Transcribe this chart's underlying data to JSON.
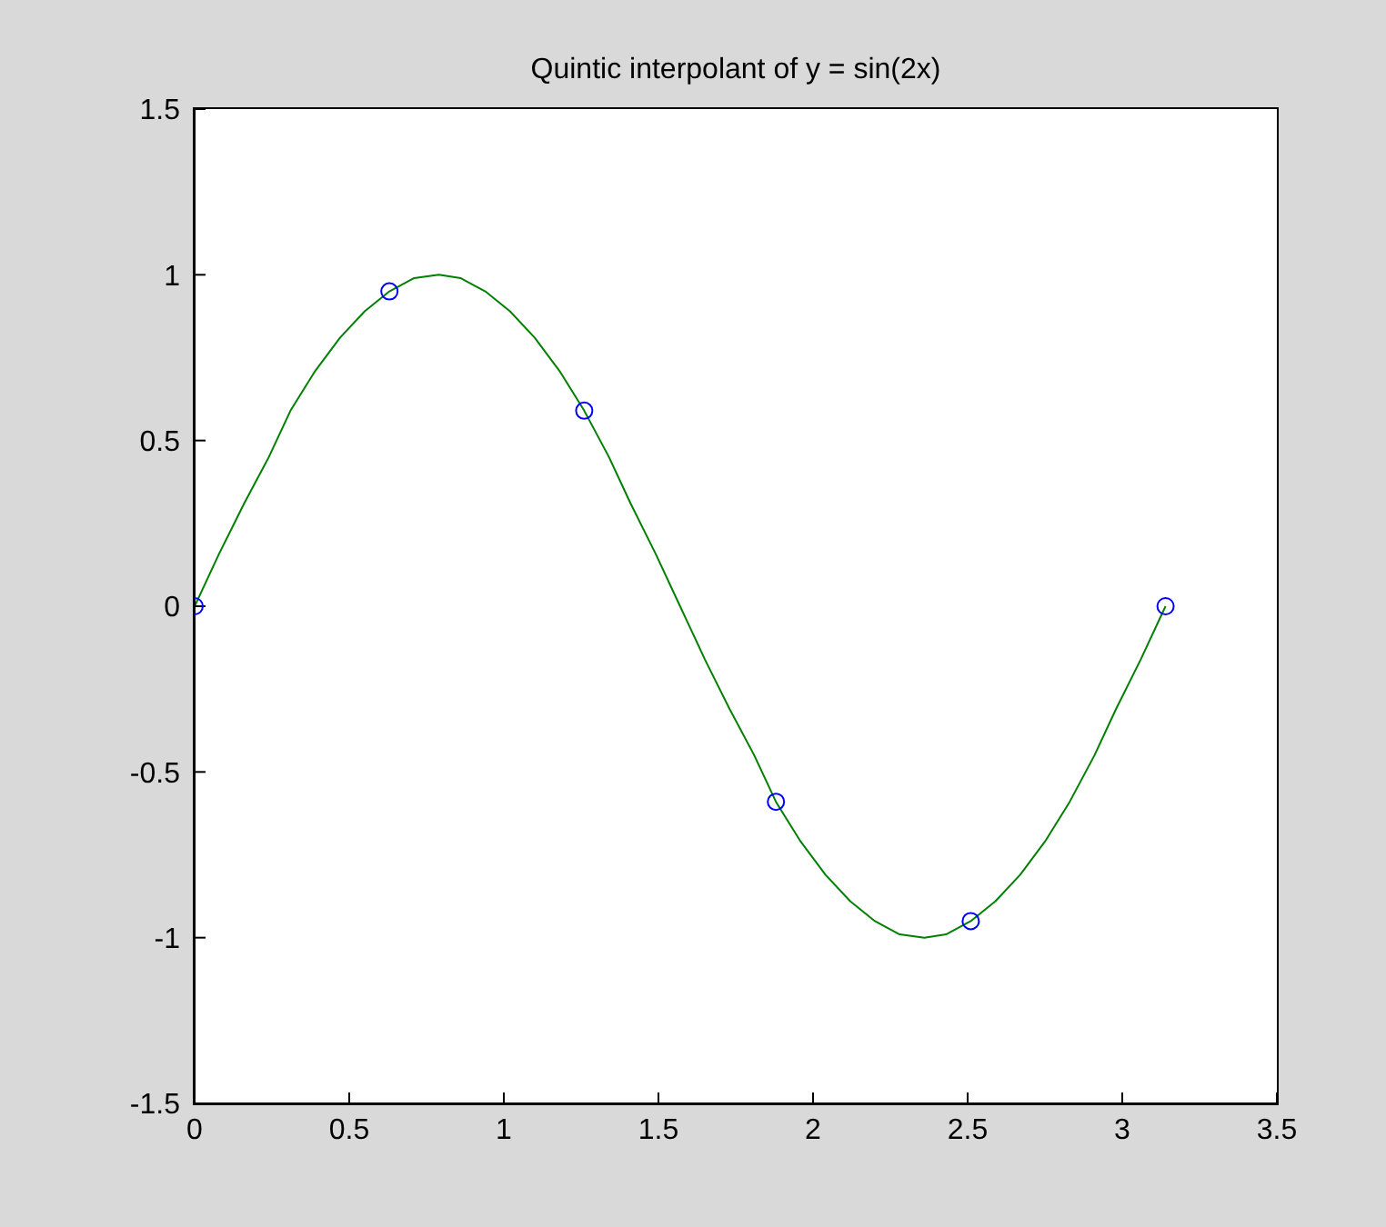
{
  "chart_data": {
    "type": "line",
    "title": "Quintic interpolant of y = sin(2x)",
    "xlim": [
      0,
      3.5
    ],
    "ylim": [
      -1.5,
      1.5
    ],
    "xticks": [
      0,
      0.5,
      1,
      1.5,
      2,
      2.5,
      3,
      3.5
    ],
    "yticks": [
      -1.5,
      -1,
      -0.5,
      0,
      0.5,
      1,
      1.5
    ],
    "series": [
      {
        "color": "#008000",
        "marker": "none",
        "line_style": "solid",
        "x": [
          0,
          0.08,
          0.16,
          0.24,
          0.31,
          0.39,
          0.47,
          0.55,
          0.63,
          0.71,
          0.79,
          0.86,
          0.94,
          1.02,
          1.1,
          1.18,
          1.26,
          1.34,
          1.41,
          1.49,
          1.57,
          1.65,
          1.73,
          1.81,
          1.88,
          1.96,
          2.04,
          2.12,
          2.2,
          2.28,
          2.36,
          2.43,
          2.51,
          2.59,
          2.67,
          2.75,
          2.83,
          2.91,
          2.98,
          3.06,
          3.14
        ],
        "values": [
          0,
          0.16,
          0.31,
          0.45,
          0.59,
          0.71,
          0.81,
          0.89,
          0.95,
          0.99,
          1,
          0.99,
          0.95,
          0.89,
          0.81,
          0.71,
          0.59,
          0.45,
          0.31,
          0.16,
          0,
          -0.16,
          -0.31,
          -0.45,
          -0.59,
          -0.71,
          -0.81,
          -0.89,
          -0.95,
          -0.99,
          -1,
          -0.99,
          -0.95,
          -0.89,
          -0.81,
          -0.71,
          -0.59,
          -0.45,
          -0.31,
          -0.16,
          0
        ]
      },
      {
        "type": "scatter",
        "color": "#0000ff",
        "marker": "circle",
        "x": [
          0,
          0.63,
          1.26,
          1.88,
          2.51,
          3.14
        ],
        "values": [
          0,
          0.95,
          0.59,
          -0.59,
          -0.95,
          0
        ]
      }
    ]
  }
}
